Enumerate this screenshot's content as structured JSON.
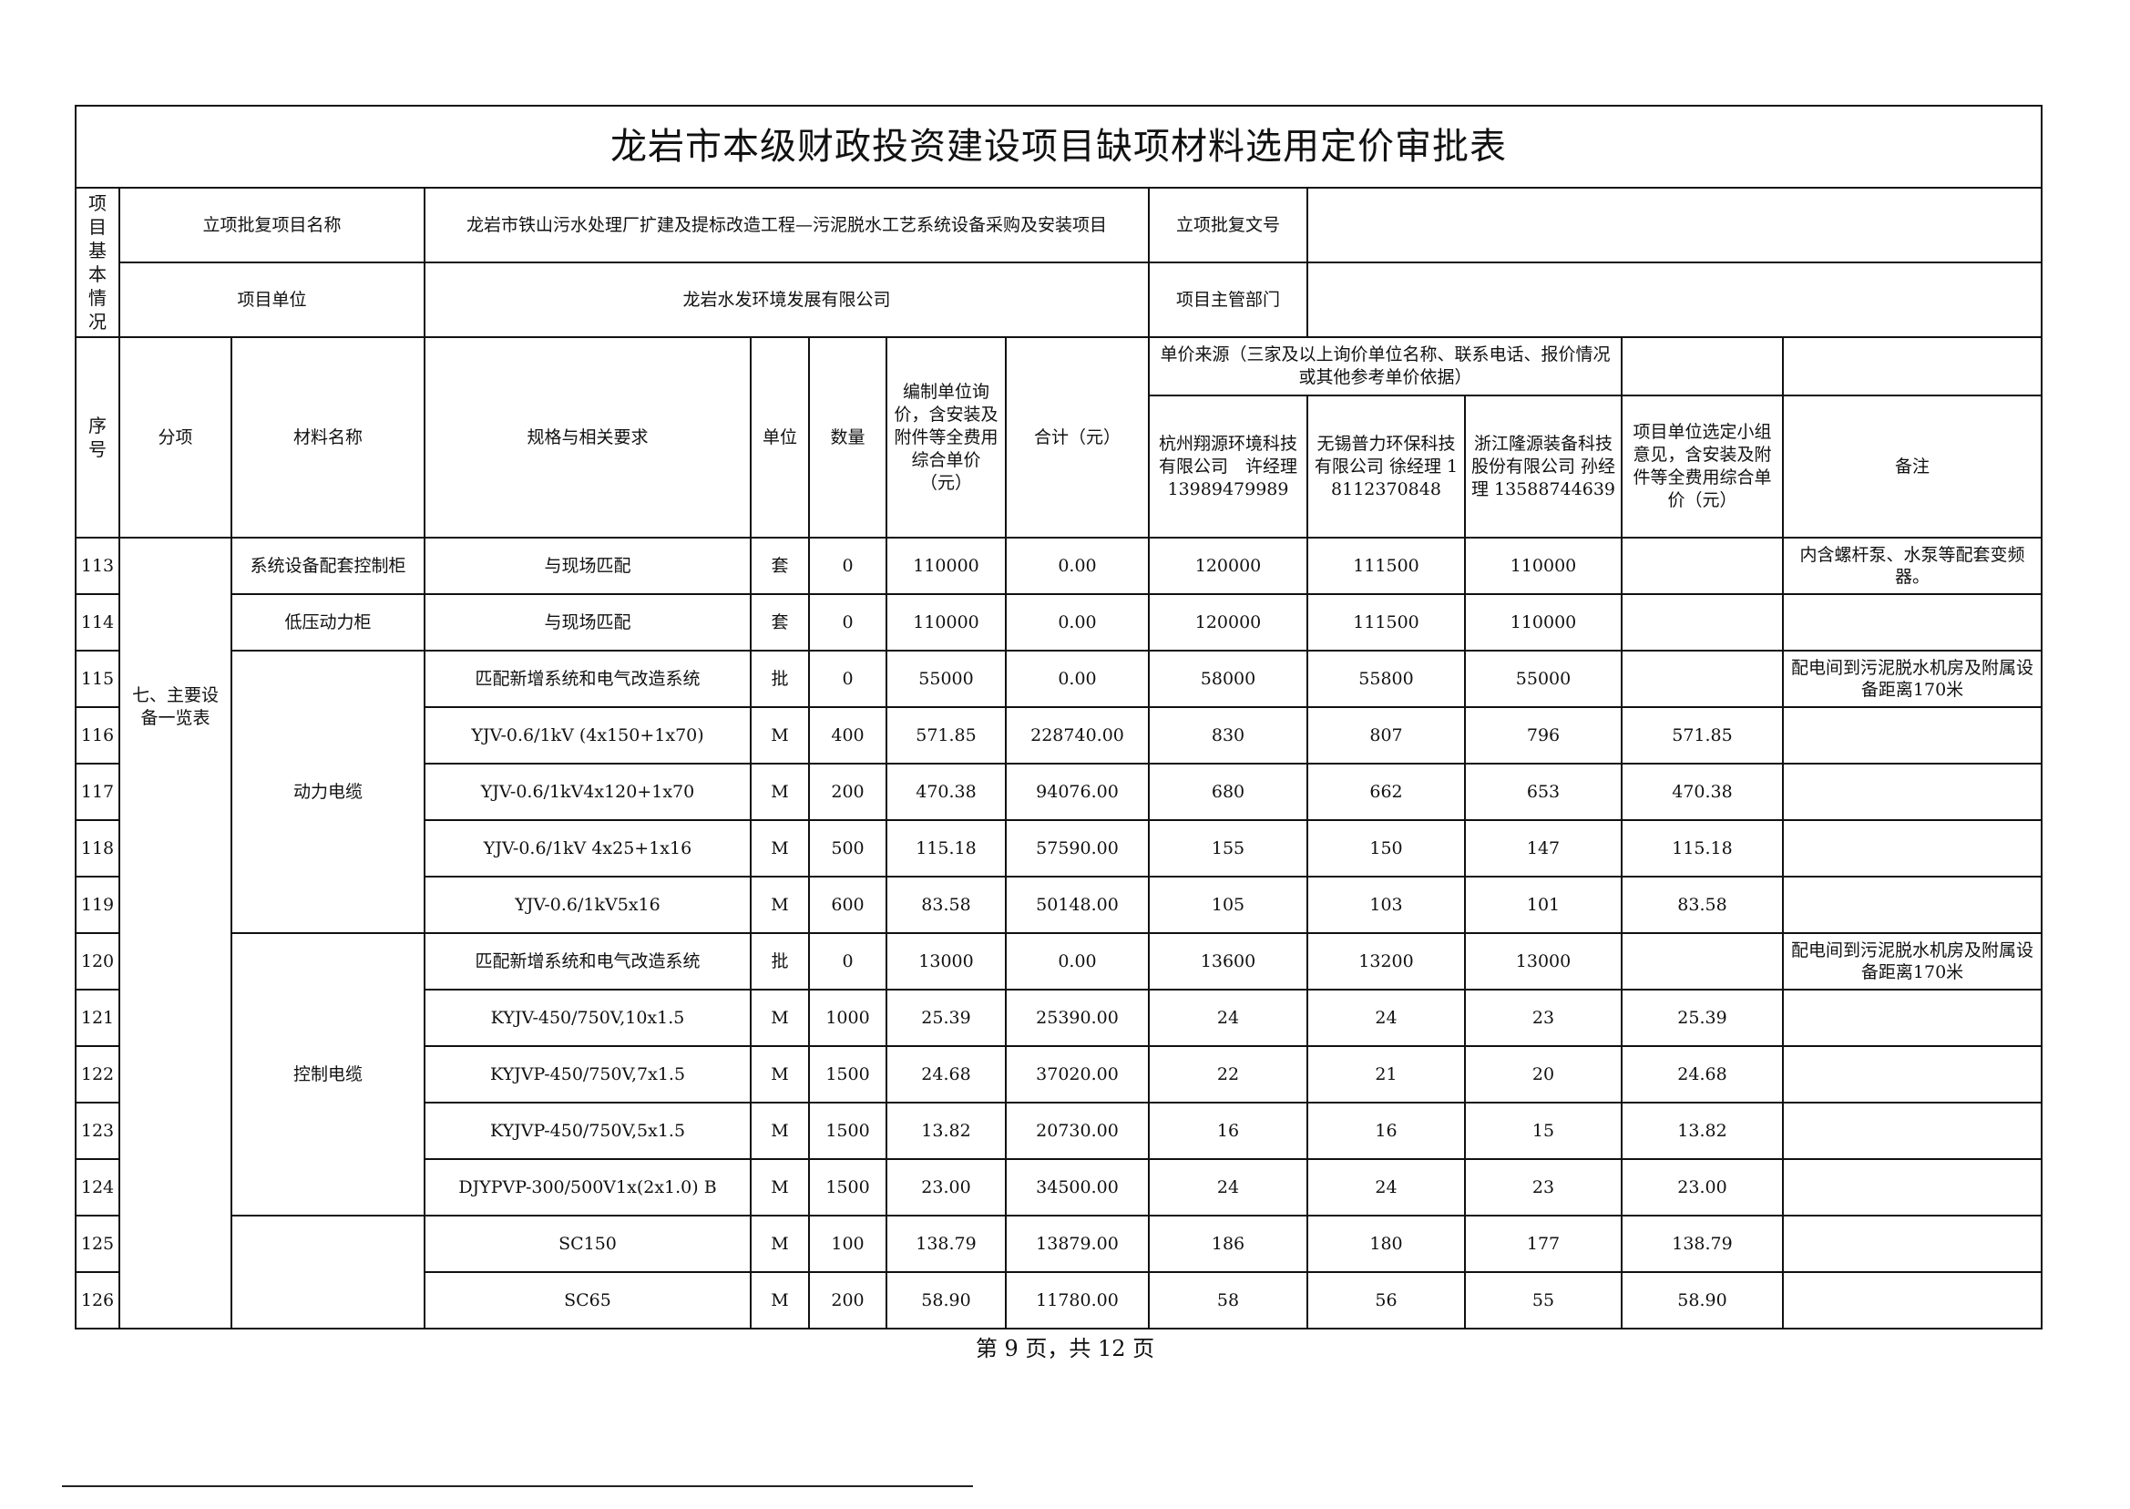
{
  "title": "龙岩市本级财政投资建设项目缺项材料选用定价审批表",
  "info": {
    "section_label": "项目基本情况",
    "project_name_label": "立项批复项目名称",
    "project_name": "龙岩市铁山污水处理厂扩建及提标改造工程—污泥脱水工艺系统设备采购及安装项目",
    "approval_no_label": "立项批复文号",
    "approval_no": "",
    "unit_label": "项目单位",
    "unit": "龙岩水发环境发展有限公司",
    "dept_label": "项目主管部门",
    "dept": ""
  },
  "headers": {
    "seq": "序号",
    "category": "分项",
    "material": "材料名称",
    "spec": "规格与相关要求",
    "unit": "单位",
    "qty": "数量",
    "unit_price": "编制单位询价，含安装及附件等全费用综合单价（元）",
    "total": "合计（元）",
    "source": "单价来源（三家及以上询价单位名称、联系电话、报价情况或其他参考单价依据）",
    "vendor1": "杭州翔源环境科技有限公司　许经理 13989479989",
    "vendor2": "无锡普力环保科技有限公司 徐经理 18112370848",
    "vendor3": "浙江隆源装备科技股份有限公司 孙经理 13588744639",
    "selected": "项目单位选定小组意见，含安装及附件等全费用综合单价（元）",
    "remark": "备注"
  },
  "category_text": "七、主要设备一览表",
  "material_groups": [
    {
      "name": "系统设备配套控制柜",
      "rows": 1
    },
    {
      "name": "低压动力柜",
      "rows": 1
    },
    {
      "name": "动力电缆",
      "rows": 5
    },
    {
      "name": "控制电缆",
      "rows": 5
    },
    {
      "name": "",
      "rows": 2
    }
  ],
  "rows": [
    {
      "seq": "113",
      "spec": "与现场匹配",
      "unit": "套",
      "qty": "0",
      "price": "110000",
      "total": "0.00",
      "v1": "120000",
      "v2": "111500",
      "v3": "110000",
      "sel": "",
      "remark": "内含螺杆泵、水泵等配套变频器。"
    },
    {
      "seq": "114",
      "spec": "与现场匹配",
      "unit": "套",
      "qty": "0",
      "price": "110000",
      "total": "0.00",
      "v1": "120000",
      "v2": "111500",
      "v3": "110000",
      "sel": "",
      "remark": ""
    },
    {
      "seq": "115",
      "spec": "匹配新增系统和电气改造系统",
      "unit": "批",
      "qty": "0",
      "price": "55000",
      "total": "0.00",
      "v1": "58000",
      "v2": "55800",
      "v3": "55000",
      "sel": "",
      "remark": "配电间到污泥脱水机房及附属设备距离170米"
    },
    {
      "seq": "116",
      "spec": "YJV-0.6/1kV (4x150+1x70)",
      "unit": "M",
      "qty": "400",
      "price": "571.85",
      "total": "228740.00",
      "v1": "830",
      "v2": "807",
      "v3": "796",
      "sel": "571.85",
      "remark": ""
    },
    {
      "seq": "117",
      "spec": "YJV-0.6/1kV4x120+1x70",
      "unit": "M",
      "qty": "200",
      "price": "470.38",
      "total": "94076.00",
      "v1": "680",
      "v2": "662",
      "v3": "653",
      "sel": "470.38",
      "remark": ""
    },
    {
      "seq": "118",
      "spec": "YJV-0.6/1kV 4x25+1x16",
      "unit": "M",
      "qty": "500",
      "price": "115.18",
      "total": "57590.00",
      "v1": "155",
      "v2": "150",
      "v3": "147",
      "sel": "115.18",
      "remark": ""
    },
    {
      "seq": "119",
      "spec": "YJV-0.6/1kV5x16",
      "unit": "M",
      "qty": "600",
      "price": "83.58",
      "total": "50148.00",
      "v1": "105",
      "v2": "103",
      "v3": "101",
      "sel": "83.58",
      "remark": ""
    },
    {
      "seq": "120",
      "spec": "匹配新增系统和电气改造系统",
      "unit": "批",
      "qty": "0",
      "price": "13000",
      "total": "0.00",
      "v1": "13600",
      "v2": "13200",
      "v3": "13000",
      "sel": "",
      "remark": "配电间到污泥脱水机房及附属设备距离170米"
    },
    {
      "seq": "121",
      "spec": "KYJV-450/750V,10x1.5",
      "unit": "M",
      "qty": "1000",
      "price": "25.39",
      "total": "25390.00",
      "v1": "24",
      "v2": "24",
      "v3": "23",
      "sel": "25.39",
      "remark": ""
    },
    {
      "seq": "122",
      "spec": "KYJVP-450/750V,7x1.5",
      "unit": "M",
      "qty": "1500",
      "price": "24.68",
      "total": "37020.00",
      "v1": "22",
      "v2": "21",
      "v3": "20",
      "sel": "24.68",
      "remark": ""
    },
    {
      "seq": "123",
      "spec": "KYJVP-450/750V,5x1.5",
      "unit": "M",
      "qty": "1500",
      "price": "13.82",
      "total": "20730.00",
      "v1": "16",
      "v2": "16",
      "v3": "15",
      "sel": "13.82",
      "remark": ""
    },
    {
      "seq": "124",
      "spec": "DJYPVP-300/500V1x(2x1.0) B",
      "unit": "M",
      "qty": "1500",
      "price": "23.00",
      "total": "34500.00",
      "v1": "24",
      "v2": "24",
      "v3": "23",
      "sel": "23.00",
      "remark": ""
    },
    {
      "seq": "125",
      "spec": "SC150",
      "unit": "M",
      "qty": "100",
      "price": "138.79",
      "total": "13879.00",
      "v1": "186",
      "v2": "180",
      "v3": "177",
      "sel": "138.79",
      "remark": ""
    },
    {
      "seq": "126",
      "spec": "SC65",
      "unit": "M",
      "qty": "200",
      "price": "58.90",
      "total": "11780.00",
      "v1": "58",
      "v2": "56",
      "v3": "55",
      "sel": "58.90",
      "remark": ""
    }
  ],
  "footer": "第 9 页，共 12 页"
}
